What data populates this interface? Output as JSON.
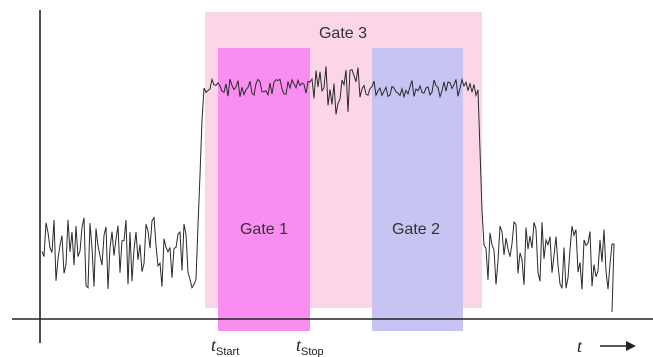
{
  "gates": [
    {
      "id": "gate3",
      "label": "Gate 3",
      "color": "#fcd6e6"
    },
    {
      "id": "gate1",
      "label": "Gate 1",
      "color": "#f98ef0"
    },
    {
      "id": "gate2",
      "label": "Gate 2",
      "color": "#c7c3f2"
    }
  ],
  "markers": {
    "start": {
      "main": "t",
      "sub": "Start"
    },
    "stop": {
      "main": "t",
      "sub": "Stop"
    }
  },
  "axis": {
    "time_symbol": "t",
    "arrow": "⟶"
  },
  "colors": {
    "signal": "#2a2a2a",
    "axis": "#222222"
  }
}
